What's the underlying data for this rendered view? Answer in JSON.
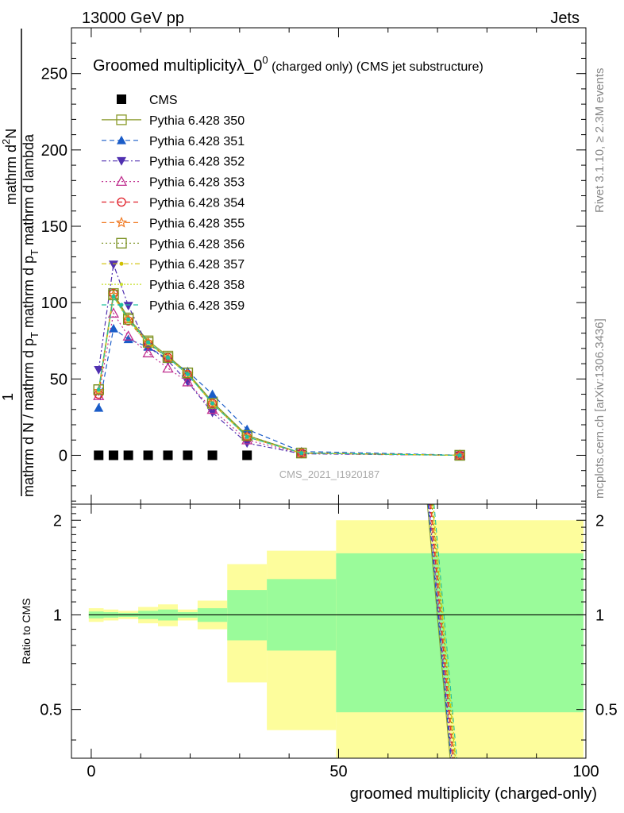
{
  "header": {
    "energy": "13000 GeV pp",
    "process": "Jets"
  },
  "side": {
    "rivet": "Rivet 3.1.10, ≥ 2.3M events",
    "mcplots": "mcplots.cern.ch [arXiv:1306.3436]"
  },
  "chart_data": [
    {
      "type": "line",
      "title": "Groomed multiplicityλ_0",
      "title_sup": "0",
      "title_rest": " (charged only) (CMS jet substructure)",
      "ylabel_parts": [
        "mathrm d",
        "2",
        "N",
        "mathrm d N / mathrm d p",
        "T",
        " mathrm d p",
        "T",
        " mathrm d lambda",
        "1"
      ],
      "watermark": "CMS_2021_I1920187",
      "xlim": [
        -4,
        100
      ],
      "ylim": [
        -32,
        280
      ],
      "yticks": [
        "0",
        "50",
        "100",
        "150",
        "200",
        "250"
      ],
      "x": [
        1.5,
        4.5,
        7.5,
        11.5,
        15.5,
        19.5,
        24.5,
        31.5,
        42.5,
        74.5
      ],
      "series": [
        {
          "name": "CMS",
          "color": "#000000",
          "marker": "square",
          "dash": "none",
          "values": [
            0,
            0,
            0,
            0,
            0,
            0,
            0,
            0,
            null,
            null
          ]
        },
        {
          "name": "Pythia 6.428 350",
          "color": "#8a9a2a",
          "marker": "open-square",
          "dash": "none",
          "values": [
            43,
            106,
            90,
            75,
            65,
            54,
            35,
            13,
            1.5,
            0
          ]
        },
        {
          "name": "Pythia 6.428 351",
          "color": "#1a5cc8",
          "marker": "triangle-up",
          "dash": "6,4",
          "values": [
            31,
            83,
            76,
            71,
            63,
            55,
            40,
            17,
            2.5,
            0.1
          ]
        },
        {
          "name": "Pythia 6.428 352",
          "color": "#5030b0",
          "marker": "triangle-down",
          "dash": "6,3,2,3",
          "values": [
            56,
            125,
            98,
            71,
            62,
            48,
            28,
            8,
            1,
            0
          ]
        },
        {
          "name": "Pythia 6.428 353",
          "color": "#c03090",
          "marker": "open-triangle-up",
          "dash": "2,3",
          "values": [
            39,
            93,
            78,
            67,
            57,
            48,
            30,
            10,
            1.3,
            0
          ]
        },
        {
          "name": "Pythia 6.428 354",
          "color": "#e0202a",
          "marker": "open-circle",
          "dash": "6,4",
          "values": [
            40,
            106,
            88,
            73,
            64,
            53,
            34,
            12,
            1.5,
            0
          ]
        },
        {
          "name": "Pythia 6.428 355",
          "color": "#f07820",
          "marker": "open-star",
          "dash": "6,4",
          "values": [
            42,
            105,
            89,
            74,
            64,
            53,
            34,
            12,
            1.5,
            0
          ]
        },
        {
          "name": "Pythia 6.428 356",
          "color": "#7a9020",
          "marker": "open-square",
          "dash": "2,3",
          "values": [
            43,
            105,
            89,
            74,
            64,
            54,
            34,
            13,
            1.5,
            0
          ]
        },
        {
          "name": "Pythia 6.428 357",
          "color": "#d0c000",
          "marker": "dash-dot",
          "dash": "6,3,2,3",
          "values": [
            42,
            104,
            89,
            74,
            64,
            53,
            34,
            12,
            1.5,
            0
          ]
        },
        {
          "name": "Pythia 6.428 358",
          "color": "#c8e030",
          "marker": "dot",
          "dash": "2,2",
          "values": [
            42,
            104,
            88,
            73,
            64,
            53,
            34,
            12,
            1.5,
            0
          ]
        },
        {
          "name": "Pythia 6.428 359",
          "color": "#20c0a0",
          "marker": "dash-dot",
          "dash": "6,4",
          "values": [
            43,
            104,
            89,
            74,
            64,
            53,
            34,
            12,
            1.5,
            0
          ]
        }
      ]
    },
    {
      "type": "area",
      "ylabel": "Ratio to CMS",
      "xlabel": "groomed multiplicity (charged-only)",
      "xlim": [
        -4,
        100
      ],
      "ylim": [
        0.35,
        2.25
      ],
      "xticks": [
        "0",
        "50",
        "100"
      ],
      "yticks": [
        "0.5",
        "1",
        "2"
      ],
      "bins": [
        {
          "lo": -0.5,
          "hi": 2.5,
          "inner": [
            0.975,
            1.025
          ],
          "outer": [
            0.95,
            1.05
          ]
        },
        {
          "lo": 2.5,
          "hi": 5.5,
          "inner": [
            0.98,
            1.02
          ],
          "outer": [
            0.96,
            1.04
          ]
        },
        {
          "lo": 5.5,
          "hi": 9.5,
          "inner": [
            0.985,
            1.015
          ],
          "outer": [
            0.97,
            1.03
          ]
        },
        {
          "lo": 9.5,
          "hi": 13.5,
          "inner": [
            0.97,
            1.03
          ],
          "outer": [
            0.94,
            1.06
          ]
        },
        {
          "lo": 13.5,
          "hi": 17.5,
          "inner": [
            0.96,
            1.04
          ],
          "outer": [
            0.92,
            1.08
          ]
        },
        {
          "lo": 17.5,
          "hi": 21.5,
          "inner": [
            0.98,
            1.02
          ],
          "outer": [
            0.96,
            1.04
          ]
        },
        {
          "lo": 21.5,
          "hi": 27.5,
          "inner": [
            0.95,
            1.05
          ],
          "outer": [
            0.9,
            1.11
          ]
        },
        {
          "lo": 27.5,
          "hi": 35.5,
          "inner": [
            0.83,
            1.2
          ],
          "outer": [
            0.61,
            1.45
          ]
        },
        {
          "lo": 35.5,
          "hi": 49.5,
          "inner": [
            0.77,
            1.3
          ],
          "outer": [
            0.43,
            1.6
          ]
        },
        {
          "lo": 49.5,
          "hi": 99.5,
          "inner": [
            0.49,
            1.57
          ],
          "outer": [
            0.3,
            2.0
          ]
        }
      ],
      "reference_line": 1,
      "mc_line_x": [
        [
          68.7,
          2.25
        ],
        [
          73.3,
          0.35
        ]
      ]
    }
  ],
  "colors": {
    "inner_band": "#9afb9a",
    "outer_band": "#fdfd9c",
    "frame": "#000000",
    "side_text": "#888888"
  }
}
